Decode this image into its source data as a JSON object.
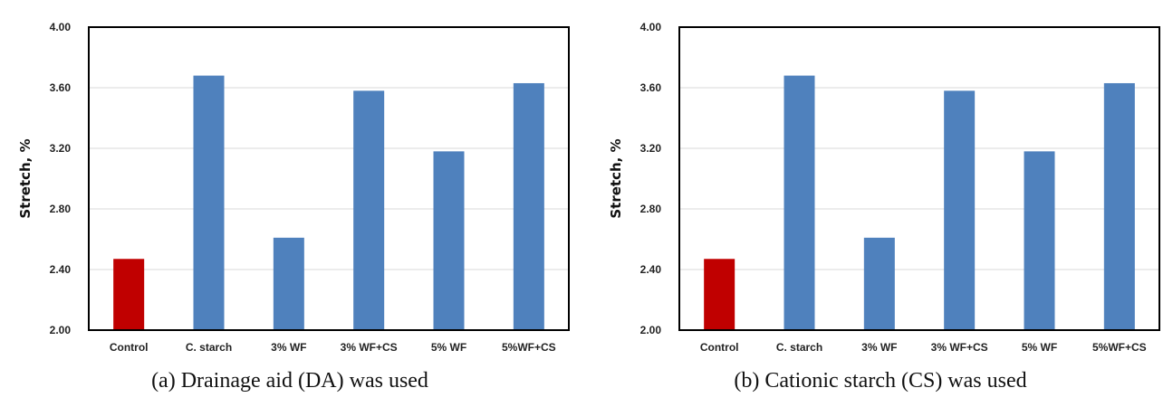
{
  "chart_data": [
    {
      "type": "bar",
      "ylabel": "Stretch, %",
      "ylim": [
        2.0,
        4.0
      ],
      "yticks": [
        "2.00",
        "2.40",
        "2.80",
        "3.20",
        "3.60",
        "4.00"
      ],
      "grid": true,
      "categories": [
        "Control",
        "C. starch",
        "3% WF",
        "3% WF+CS",
        "5% WF",
        "5%WF+CS"
      ],
      "values": [
        2.47,
        3.68,
        2.61,
        3.58,
        3.18,
        3.63
      ],
      "colors": [
        "#c00000",
        "#4f81bd",
        "#4f81bd",
        "#4f81bd",
        "#4f81bd",
        "#4f81bd"
      ],
      "caption": "(a) Drainage aid (DA) was used"
    },
    {
      "type": "bar",
      "ylabel": "Stretch, %",
      "ylim": [
        2.0,
        4.0
      ],
      "yticks": [
        "2.00",
        "2.40",
        "2.80",
        "3.20",
        "3.60",
        "4.00"
      ],
      "grid": true,
      "categories": [
        "Control",
        "C. starch",
        "3% WF",
        "3% WF+CS",
        "5% WF",
        "5%WF+CS"
      ],
      "values": [
        2.47,
        3.68,
        2.61,
        3.58,
        3.18,
        3.63
      ],
      "colors": [
        "#c00000",
        "#4f81bd",
        "#4f81bd",
        "#4f81bd",
        "#4f81bd",
        "#4f81bd"
      ],
      "caption": "(b) Cationic starch (CS) was used"
    }
  ]
}
